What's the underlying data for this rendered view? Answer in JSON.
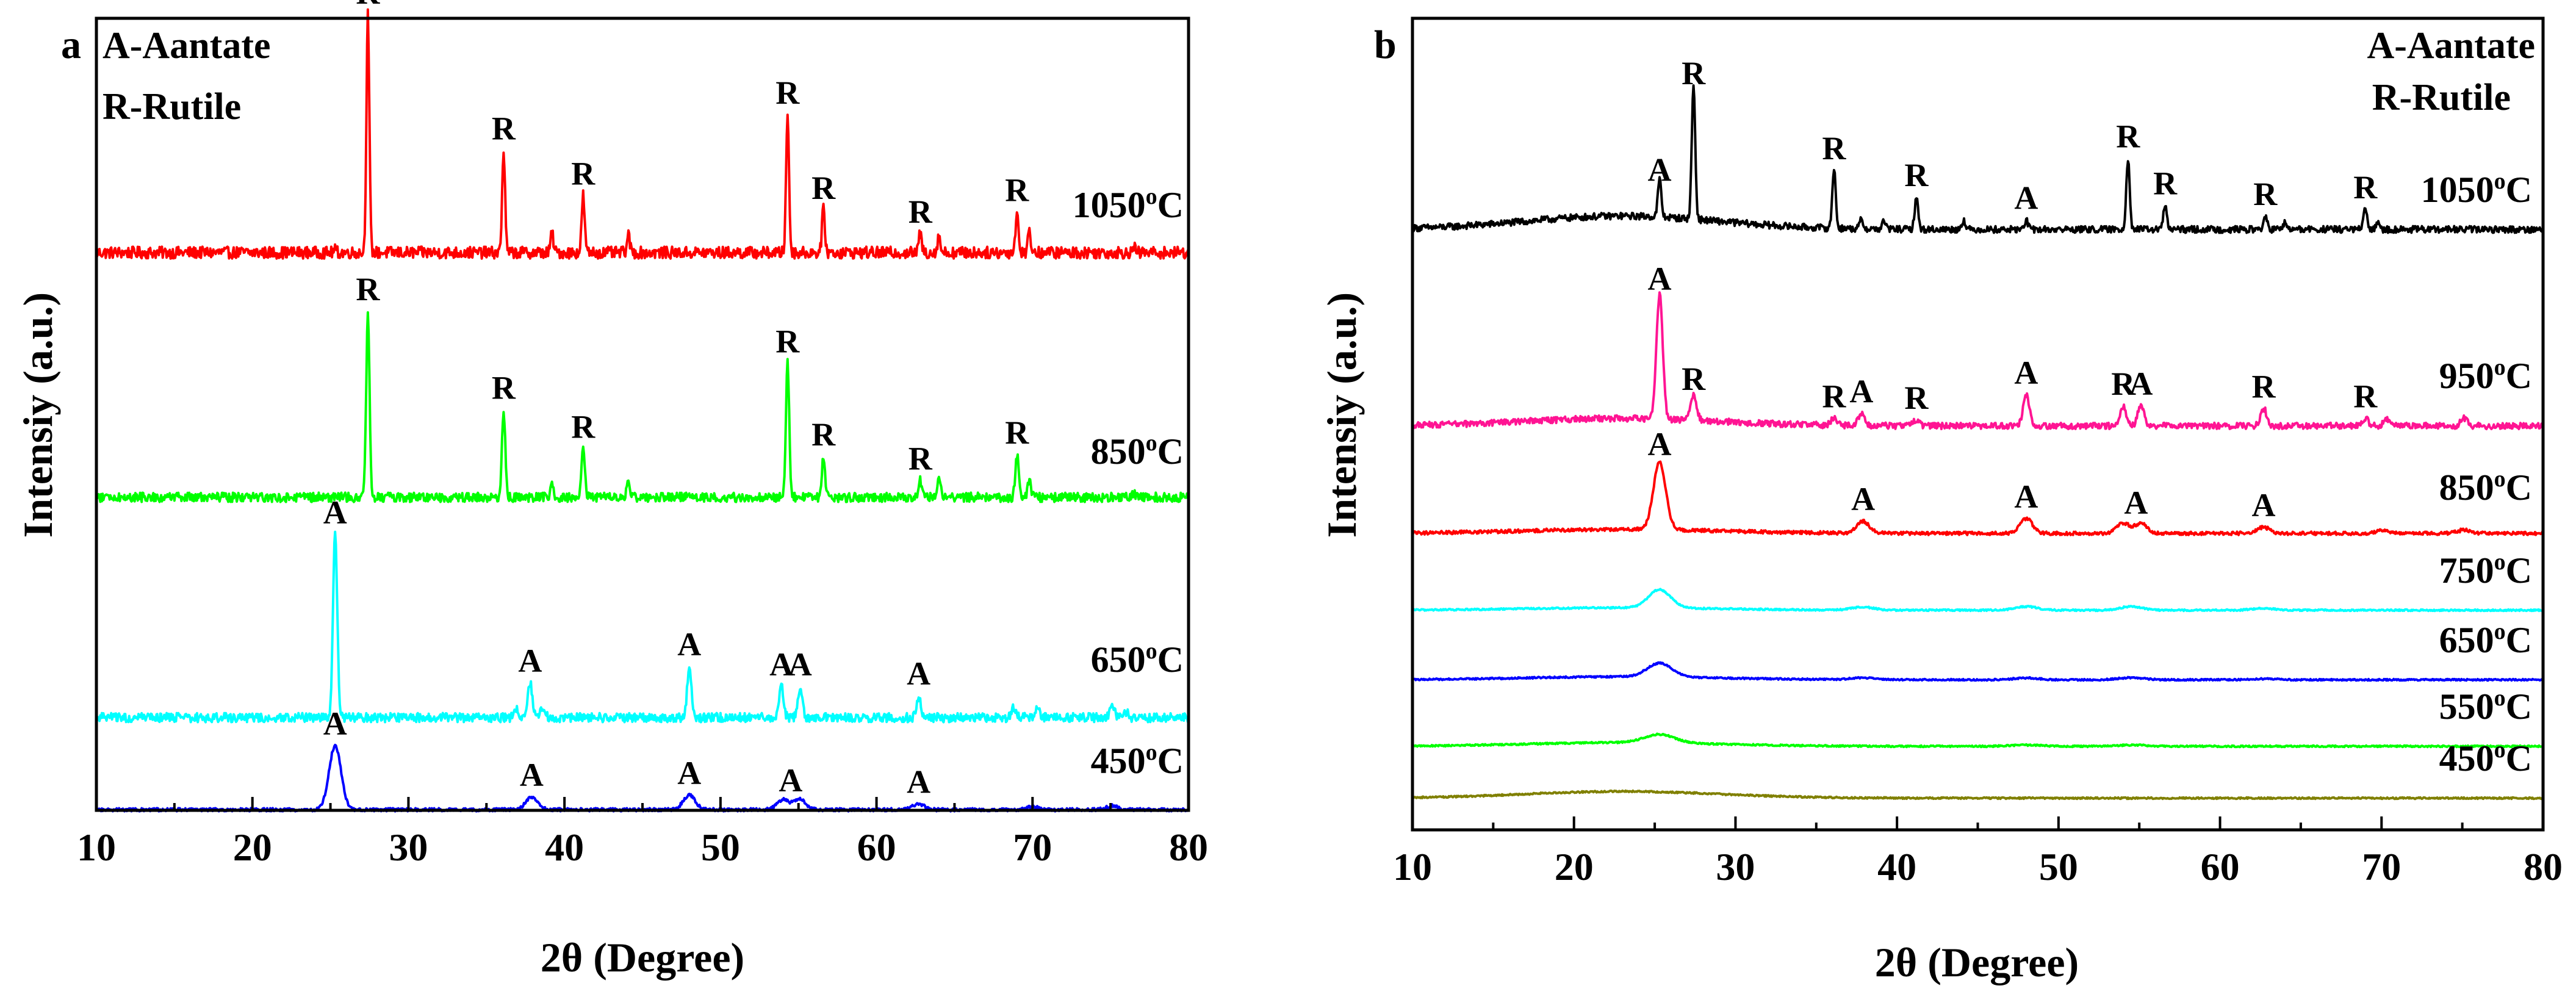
{
  "chart_data": [
    {
      "panel": "a",
      "type": "line",
      "title": "",
      "xlabel": "2θ (Degree)",
      "ylabel": "Intensiy (a.u.)",
      "xlim": [
        10,
        80
      ],
      "xticks": [
        10,
        20,
        30,
        40,
        50,
        60,
        70,
        80
      ],
      "legend": {
        "position": "top-left",
        "lines": [
          "A-Aantate",
          "R-Rutile"
        ]
      },
      "series": [
        {
          "name": "1050°C",
          "temp": "1050",
          "color": "#ff0000",
          "level": 0.3,
          "height": 3.9,
          "fwhm": 0.22,
          "peaks": [
            [
              25.3,
              0.01
            ],
            [
              27.4,
              1.0
            ],
            [
              36.1,
              0.43
            ],
            [
              39.2,
              0.08
            ],
            [
              41.2,
              0.24
            ],
            [
              44.1,
              0.07
            ],
            [
              54.3,
              0.58
            ],
            [
              56.6,
              0.18
            ],
            [
              62.8,
              0.08
            ],
            [
              64.0,
              0.07
            ],
            [
              69.0,
              0.17
            ],
            [
              69.8,
              0.09
            ],
            [
              76.5,
              0.02
            ]
          ],
          "labels": [
            [
              "R",
              27.4
            ],
            [
              "R",
              36.1
            ],
            [
              "R",
              41.2
            ],
            [
              "R",
              54.3
            ],
            [
              "R",
              56.6
            ],
            [
              "R",
              62.8
            ],
            [
              "R",
              69.0
            ]
          ]
        },
        {
          "name": "850°C",
          "temp": "850",
          "color": "#00ff00",
          "level": 0.3,
          "height": 3.05,
          "fwhm": 0.25,
          "peaks": [
            [
              27.4,
              1.0
            ],
            [
              36.1,
              0.47
            ],
            [
              39.2,
              0.07
            ],
            [
              41.2,
              0.26
            ],
            [
              44.1,
              0.08
            ],
            [
              54.3,
              0.72
            ],
            [
              56.6,
              0.22
            ],
            [
              62.8,
              0.09
            ],
            [
              64.0,
              0.09
            ],
            [
              69.0,
              0.23
            ],
            [
              69.8,
              0.1
            ],
            [
              76.5,
              0.02
            ]
          ],
          "labels": [
            [
              "R",
              27.4
            ],
            [
              "R",
              36.1
            ],
            [
              "R",
              41.2
            ],
            [
              "R",
              54.3
            ],
            [
              "R",
              56.6
            ],
            [
              "R",
              62.8
            ],
            [
              "R",
              69.0
            ]
          ]
        },
        {
          "name": "650°C",
          "temp": "650",
          "color": "#00ffff",
          "level": 0.3,
          "height": 3.0,
          "fwhm": 0.32,
          "peaks": [
            [
              25.3,
              1.0
            ],
            [
              36.9,
              0.05
            ],
            [
              37.8,
              0.19
            ],
            [
              38.6,
              0.06
            ],
            [
              48.0,
              0.28
            ],
            [
              53.9,
              0.17
            ],
            [
              55.1,
              0.17
            ],
            [
              62.7,
              0.12
            ],
            [
              68.8,
              0.05
            ],
            [
              70.3,
              0.06
            ],
            [
              75.1,
              0.08
            ],
            [
              76.0,
              0.03
            ]
          ],
          "labels": [
            [
              "A",
              25.3
            ],
            [
              "A",
              37.8
            ],
            [
              "A",
              48.0
            ],
            [
              "A",
              53.9
            ],
            [
              "A",
              55.1
            ],
            [
              "A",
              62.7
            ]
          ]
        },
        {
          "name": "450°C",
          "temp": "450",
          "color": "#0000ff",
          "level": 0.3,
          "height": 1.05,
          "fwhm": 0.9,
          "peaks": [
            [
              25.3,
              1.0
            ],
            [
              37.9,
              0.2
            ],
            [
              48.0,
              0.23
            ],
            [
              54.0,
              0.16
            ],
            [
              55.1,
              0.16
            ],
            [
              62.7,
              0.09
            ],
            [
              70.0,
              0.05
            ],
            [
              75.1,
              0.06
            ]
          ],
          "labels": [
            [
              "A",
              25.3
            ],
            [
              "A",
              37.9
            ],
            [
              "A",
              48.0
            ],
            [
              "A",
              54.5
            ],
            [
              "A",
              62.7
            ]
          ]
        }
      ]
    },
    {
      "panel": "b",
      "type": "line",
      "title": "",
      "xlabel": "2θ (Degree)",
      "ylabel": "Intensiy (a.u.)",
      "xlim": [
        10,
        80
      ],
      "xticks": [
        10,
        20,
        30,
        40,
        50,
        60,
        70,
        80
      ],
      "legend": {
        "position": "top-right",
        "lines": [
          "A-Aantate",
          "R-Rutile"
        ]
      },
      "series": [
        {
          "name": "1050°C",
          "temp": "1050",
          "color": "#000000",
          "level": 0.3,
          "height": 2.2,
          "fwhm": 0.25,
          "hump": 0.1,
          "peaks": [
            [
              25.3,
              0.28
            ],
            [
              27.4,
              1.0
            ],
            [
              36.1,
              0.44
            ],
            [
              37.8,
              0.07
            ],
            [
              39.2,
              0.06
            ],
            [
              41.2,
              0.24
            ],
            [
              44.1,
              0.07
            ],
            [
              48.0,
              0.07
            ],
            [
              54.3,
              0.53
            ],
            [
              56.6,
              0.18
            ],
            [
              62.8,
              0.1
            ],
            [
              64.0,
              0.05
            ],
            [
              69.0,
              0.15
            ],
            [
              69.8,
              0.07
            ]
          ],
          "labels": [
            [
              "A",
              25.3
            ],
            [
              "R",
              27.4
            ],
            [
              "R",
              36.1
            ],
            [
              "R",
              41.2
            ],
            [
              "A",
              48.0
            ],
            [
              "R",
              54.3
            ],
            [
              "R",
              56.6
            ],
            [
              "R",
              62.8
            ],
            [
              "R",
              69.0
            ]
          ]
        },
        {
          "name": "950°C",
          "temp": "950",
          "color": "#ff1493",
          "level": 0.3,
          "height": 2.05,
          "fwhm": 0.45,
          "hump": 0.06,
          "peaks": [
            [
              25.3,
              1.0
            ],
            [
              27.4,
              0.2
            ],
            [
              36.1,
              0.06
            ],
            [
              37.8,
              0.1
            ],
            [
              41.2,
              0.05
            ],
            [
              48.0,
              0.25
            ],
            [
              54.0,
              0.16
            ],
            [
              55.1,
              0.16
            ],
            [
              62.7,
              0.14
            ],
            [
              69.0,
              0.06
            ],
            [
              70.3,
              0.05
            ],
            [
              75.1,
              0.06
            ]
          ],
          "labels": [
            [
              "A",
              25.3
            ],
            [
              "R",
              27.4
            ],
            [
              "R",
              36.1
            ],
            [
              "A",
              37.8
            ],
            [
              "R",
              41.2
            ],
            [
              "A",
              48.0
            ],
            [
              "R",
              54.0
            ],
            [
              "A",
              55.1
            ],
            [
              "R",
              62.7
            ],
            [
              "R",
              69.0
            ]
          ]
        },
        {
          "name": "850°C",
          "temp": "850",
          "color": "#ff0000",
          "level": 0.3,
          "height": 1.1,
          "fwhm": 0.9,
          "hump": 0.06,
          "peaks": [
            [
              25.3,
              1.0
            ],
            [
              37.9,
              0.18
            ],
            [
              48.0,
              0.22
            ],
            [
              54.0,
              0.15
            ],
            [
              55.1,
              0.15
            ],
            [
              62.7,
              0.09
            ],
            [
              70.0,
              0.04
            ],
            [
              75.1,
              0.05
            ]
          ],
          "labels": [
            [
              "A",
              25.3
            ],
            [
              "A",
              37.9
            ],
            [
              "A",
              48.0
            ],
            [
              "A",
              54.8
            ],
            [
              "A",
              62.7
            ]
          ]
        },
        {
          "name": "750°C",
          "temp": "750",
          "color": "#00ffff",
          "level": 0.3,
          "height": 0.5,
          "fwhm": 1.6,
          "hump": 0.08,
          "peaks": [
            [
              25.3,
              0.6
            ],
            [
              37.9,
              0.1
            ],
            [
              48.0,
              0.12
            ],
            [
              54.5,
              0.12
            ],
            [
              62.7,
              0.06
            ]
          ],
          "labels": []
        },
        {
          "name": "650°C",
          "temp": "650",
          "color": "#0000ff",
          "level": 0.3,
          "height": 0.5,
          "fwhm": 1.8,
          "hump": 0.1,
          "peaks": [
            [
              25.3,
              0.45
            ],
            [
              37.9,
              0.06
            ],
            [
              48.0,
              0.06
            ],
            [
              54.5,
              0.07
            ],
            [
              62.7,
              0.03
            ]
          ],
          "labels": []
        },
        {
          "name": "550°C",
          "temp": "550",
          "color": "#00ff00",
          "level": 0.3,
          "height": 0.5,
          "fwhm": 2.2,
          "hump": 0.12,
          "peaks": [
            [
              25.3,
              0.28
            ],
            [
              48.0,
              0.04
            ],
            [
              54.5,
              0.04
            ]
          ],
          "labels": []
        },
        {
          "name": "450°C",
          "temp": "450",
          "color": "#808000",
          "level": 0.3,
          "height": 0.5,
          "fwhm": 3.0,
          "hump": 0.22,
          "peaks": [],
          "labels": []
        }
      ]
    }
  ]
}
